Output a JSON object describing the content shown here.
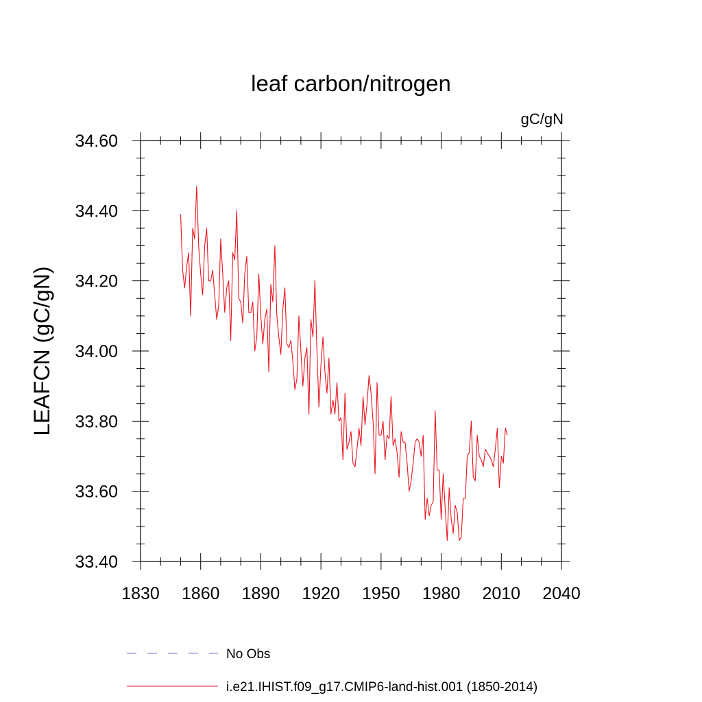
{
  "chart_data": {
    "type": "line",
    "title": "leaf carbon/nitrogen",
    "units_label": "gC/gN",
    "ylabel": "LEAFCN  (gC/gN)",
    "xlabel": "",
    "xlim": [
      1830,
      2040
    ],
    "ylim": [
      33.4,
      34.6
    ],
    "x_ticks": [
      "1830",
      "1860",
      "1890",
      "1920",
      "1950",
      "1980",
      "2010",
      "2040"
    ],
    "y_ticks": [
      "33.40",
      "33.60",
      "33.80",
      "34.00",
      "34.20",
      "34.40",
      "34.60"
    ],
    "x_minor_step": 10,
    "y_minor_step": 0.05,
    "grid": false,
    "legend_position": "bottom",
    "legend": [
      {
        "label": "No Obs",
        "color": "#7b72c8",
        "dash": true
      },
      {
        "label": "i.e21.IHIST.f09_g17.CMIP6-land-hist.001 (1850-2014)",
        "color": "#e8141e",
        "dash": false
      }
    ],
    "series": [
      {
        "color": "#e8141e",
        "x_start": 1850,
        "x_step": 1,
        "values": [
          34.39,
          34.23,
          34.18,
          34.24,
          34.28,
          34.1,
          34.35,
          34.32,
          34.47,
          34.3,
          34.22,
          34.16,
          34.3,
          34.35,
          34.2,
          34.2,
          34.23,
          34.16,
          34.09,
          34.13,
          34.32,
          34.22,
          34.11,
          34.18,
          34.2,
          34.03,
          34.28,
          34.26,
          34.4,
          34.15,
          34.14,
          34.08,
          34.22,
          34.27,
          34.11,
          34.11,
          34.14,
          34.0,
          34.04,
          34.22,
          34.1,
          34.02,
          34.09,
          34.12,
          33.94,
          34.19,
          34.14,
          34.3,
          34.1,
          34.04,
          33.99,
          34.12,
          34.18,
          34.02,
          34.01,
          34.03,
          33.97,
          33.89,
          33.92,
          34.1,
          34.0,
          33.9,
          33.98,
          34.01,
          33.82,
          34.09,
          34.04,
          34.2,
          34.0,
          33.84,
          33.96,
          34.04,
          33.94,
          33.88,
          33.98,
          33.82,
          33.86,
          33.82,
          33.91,
          33.8,
          33.81,
          33.69,
          33.88,
          33.72,
          33.74,
          33.77,
          33.68,
          33.67,
          33.72,
          33.78,
          33.73,
          33.87,
          33.79,
          33.85,
          33.93,
          33.88,
          33.8,
          33.65,
          33.91,
          33.76,
          33.76,
          33.8,
          33.69,
          33.76,
          33.75,
          33.87,
          33.73,
          33.75,
          33.71,
          33.64,
          33.77,
          33.74,
          33.74,
          33.68,
          33.6,
          33.63,
          33.68,
          33.74,
          33.75,
          33.74,
          33.7,
          33.76,
          33.52,
          33.58,
          33.53,
          33.56,
          33.57,
          33.83,
          33.66,
          33.66,
          33.52,
          33.65,
          33.55,
          33.46,
          33.61,
          33.52,
          33.48,
          33.56,
          33.54,
          33.46,
          33.47,
          33.58,
          33.58,
          33.7,
          33.71,
          33.8,
          33.64,
          33.63,
          33.76,
          33.7,
          33.69,
          33.67,
          33.72,
          33.71,
          33.7,
          33.69,
          33.67,
          33.72,
          33.78,
          33.61,
          33.7,
          33.68,
          33.78,
          33.76
        ]
      }
    ]
  }
}
